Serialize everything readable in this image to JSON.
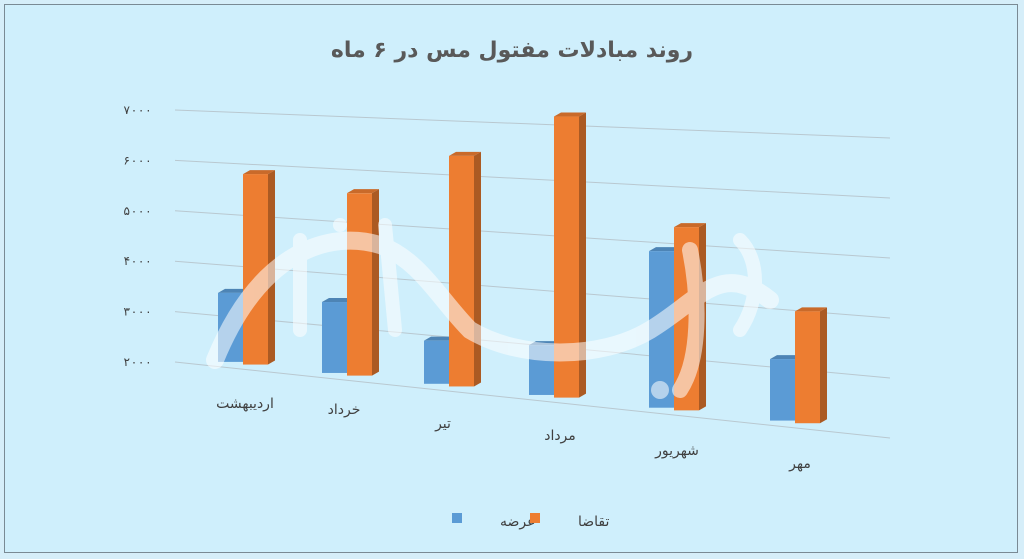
{
  "chart_data": {
    "type": "bar",
    "title": "روند مبادلات مفتول مس در ۶ ماه",
    "categories": [
      "اردیبهشت",
      "خرداد",
      "تیر",
      "مرداد",
      "شهریور",
      "مهر"
    ],
    "series": [
      {
        "name": "عرضه",
        "color": "#5b9bd5",
        "values": [
          3350,
          3350,
          2800,
          2900,
          4750,
          3050
        ]
      },
      {
        "name": "تقاضا",
        "color": "#ed7d31",
        "values": [
          5700,
          5450,
          6250,
          7050,
          5200,
          3900
        ]
      }
    ],
    "y_ticks": [
      "۷۰۰۰",
      "۶۰۰۰",
      "۵۰۰۰",
      "۴۰۰۰",
      "۳۰۰۰",
      "۲۰۰۰"
    ],
    "ylim": [
      2000,
      7000
    ],
    "legend": "bottom",
    "grid": true
  },
  "watermark": "دنیای اقتصاد"
}
